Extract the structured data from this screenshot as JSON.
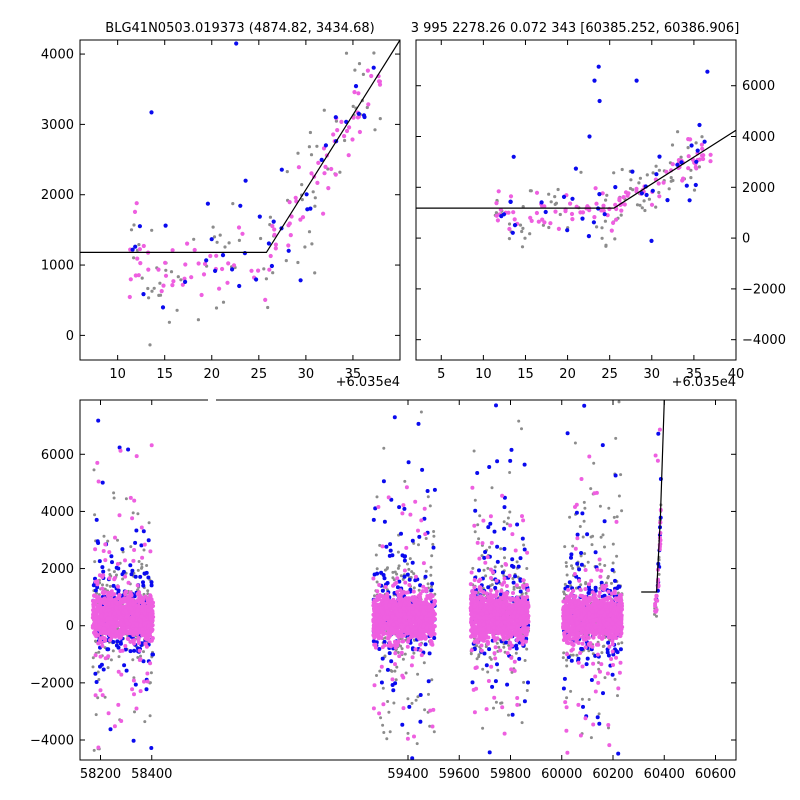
{
  "colors": {
    "gray": "#8c8c8c",
    "magenta": "#ee5fe0",
    "blue": "#0a0aee",
    "axes": "#000000"
  },
  "chart_data": [
    {
      "type": "scatter",
      "title": "BLG41N0503.019373 (4874.82, 3434.68)",
      "offset_label": "+6.035e4",
      "xlim": [
        6,
        40
      ],
      "ylim": [
        -350,
        4200
      ],
      "x_ticks": [
        "10",
        "15",
        "20",
        "25",
        "30",
        "35"
      ],
      "y_ticks": [
        "0",
        "1000",
        "2000",
        "3000",
        "4000"
      ],
      "ytick_side": "left",
      "model_line": {
        "x": [
          6,
          25.8,
          40
        ],
        "y": [
          1180,
          1180,
          4200
        ]
      },
      "scatter_seed": 11,
      "scatter_clusters": [
        {
          "x": [
            11,
            25.8
          ],
          "base": 1000,
          "slope": 0,
          "spread": 450,
          "n": [
            40,
            45,
            18
          ]
        },
        {
          "x": [
            25.8,
            38
          ],
          "base": 1180,
          "slope": 200,
          "spread": 520,
          "n": [
            45,
            55,
            20
          ]
        }
      ],
      "outliers": {
        "x": [
          13.6,
          22.6,
          23.6
        ],
        "y": [
          3170,
          4150,
          2200
        ]
      }
    },
    {
      "type": "scatter",
      "title": "3 995 2278.26 0.072 343 [60385.252, 60386.906]",
      "offset_label": "+6.035e4",
      "xlim": [
        2,
        40
      ],
      "ylim": [
        -4800,
        7800
      ],
      "x_ticks": [
        "5",
        "10",
        "15",
        "20",
        "25",
        "30",
        "35",
        "40"
      ],
      "y_ticks": [
        "−4000",
        "−2000",
        "0",
        "2000",
        "4000",
        "6000"
      ],
      "ytick_side": "right",
      "model_line": {
        "x": [
          2,
          25.5,
          40
        ],
        "y": [
          1180,
          1180,
          4250
        ]
      },
      "scatter_seed": 23,
      "scatter_clusters": [
        {
          "x": [
            11,
            25.5
          ],
          "base": 1100,
          "slope": 0,
          "spread": 650,
          "n": [
            40,
            50,
            18
          ]
        },
        {
          "x": [
            25.5,
            37
          ],
          "base": 1250,
          "slope": 200,
          "spread": 620,
          "n": [
            45,
            55,
            20
          ]
        }
      ],
      "outliers": {
        "x": [
          13.6,
          23.2,
          23.7,
          23.8,
          28.2,
          36.6,
          22.6
        ],
        "y": [
          3200,
          6200,
          6750,
          5400,
          6200,
          6550,
          4000
        ]
      }
    },
    {
      "type": "scatter",
      "title": "",
      "offset_label": "",
      "xlim": [
        58120,
        60680
      ],
      "ylim": [
        -4700,
        7900
      ],
      "x_ticks": [
        "58200",
        "58400",
        "59400",
        "59600",
        "59800",
        "60000",
        "60200",
        "60400",
        "60600"
      ],
      "y_ticks": [
        "−4000",
        "−2000",
        "0",
        "2000",
        "4000",
        "6000"
      ],
      "ytick_side": "left",
      "model_line": {
        "x": [
          60310,
          60370,
          60385,
          60400
        ],
        "y": [
          1180,
          1180,
          3800,
          7900
        ]
      },
      "scatter_seed": 37,
      "seasons": [
        {
          "x": [
            58170,
            58405
          ],
          "n": [
            260,
            420,
            180
          ]
        },
        {
          "x": [
            59265,
            59505
          ],
          "n": [
            260,
            420,
            180
          ]
        },
        {
          "x": [
            59645,
            59870
          ],
          "n": [
            260,
            420,
            180
          ]
        },
        {
          "x": [
            60005,
            60235
          ],
          "n": [
            240,
            400,
            170
          ]
        }
      ],
      "event": {
        "x": [
          60362,
          60387
        ],
        "n": [
          20,
          30,
          12
        ]
      }
    }
  ]
}
